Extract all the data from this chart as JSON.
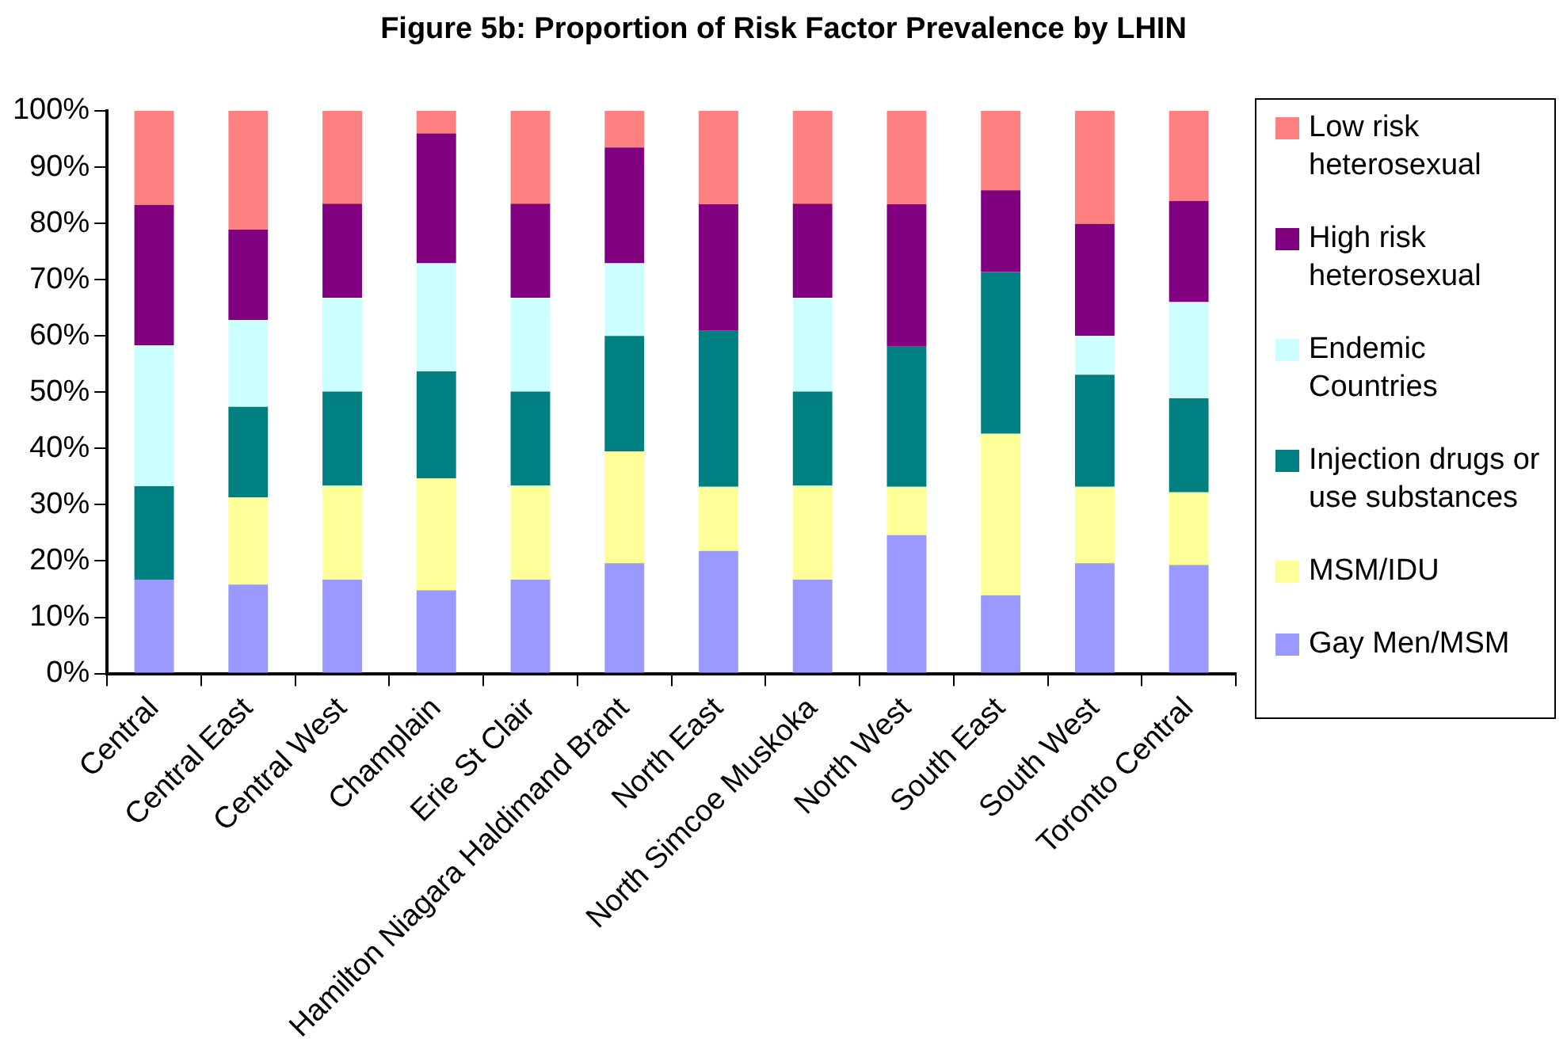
{
  "chart_data": {
    "type": "bar",
    "title": "Figure 5b: Proportion of Risk Factor Prevalence by LHIN",
    "stacked": true,
    "grid": false,
    "legend": "right",
    "categories": [
      "Central",
      "Central East",
      "Central West",
      "Champlain",
      "Erie St Clair",
      "Hamilton Niagara Haldimand Brant",
      "North East",
      "North Simcoe Muskoka",
      "North West",
      "South East",
      "South West",
      "Toronto Central"
    ],
    "ylim": [
      0,
      100
    ],
    "yticks": [
      {
        "value": 0,
        "label": "0%"
      },
      {
        "value": 10,
        "label": "10%"
      },
      {
        "value": 20,
        "label": "20%"
      },
      {
        "value": 30,
        "label": "30%"
      },
      {
        "value": 40,
        "label": "40%"
      },
      {
        "value": 50,
        "label": "50%"
      },
      {
        "value": 60,
        "label": "60%"
      },
      {
        "value": 70,
        "label": "70%"
      },
      {
        "value": 80,
        "label": "80%"
      },
      {
        "value": 90,
        "label": "90%"
      },
      {
        "value": 100,
        "label": "100%"
      }
    ],
    "series": [
      {
        "name": "Gay Men/MSM",
        "color": "#9999ff",
        "values": [
          16.7,
          15.8,
          16.7,
          14.8,
          16.7,
          19.6,
          21.8,
          16.7,
          24.6,
          13.9,
          19.6,
          19.3
        ]
      },
      {
        "name": "MSM/IDU",
        "color": "#ffff99",
        "values": [
          0,
          15.5,
          16.7,
          19.9,
          16.7,
          19.9,
          11.4,
          16.7,
          8.6,
          28.7,
          13.6,
          12.9
        ]
      },
      {
        "name": "Injection drugs or use substances",
        "color": "#008080",
        "values": [
          16.6,
          16.1,
          16.7,
          19.0,
          16.7,
          20.5,
          27.7,
          16.7,
          24.9,
          28.8,
          19.9,
          16.7
        ]
      },
      {
        "name": "Endemic Countries",
        "color": "#ccffff",
        "values": [
          25,
          15.4,
          16.7,
          19.2,
          16.7,
          12.9,
          0,
          16.7,
          0,
          0,
          6.9,
          17.1
        ]
      },
      {
        "name": "High risk heterosexual",
        "color": "#800080",
        "values": [
          25,
          16.1,
          16.7,
          23.1,
          16.7,
          20.6,
          22.5,
          16.7,
          25.3,
          14.5,
          19.9,
          18.0
        ]
      },
      {
        "name": "Low risk heterosexual",
        "color": "#ff8080",
        "values": [
          16.7,
          21.1,
          16.5,
          4.0,
          16.5,
          6.5,
          16.6,
          16.5,
          16.6,
          14.1,
          20.1,
          16.0
        ]
      }
    ]
  }
}
